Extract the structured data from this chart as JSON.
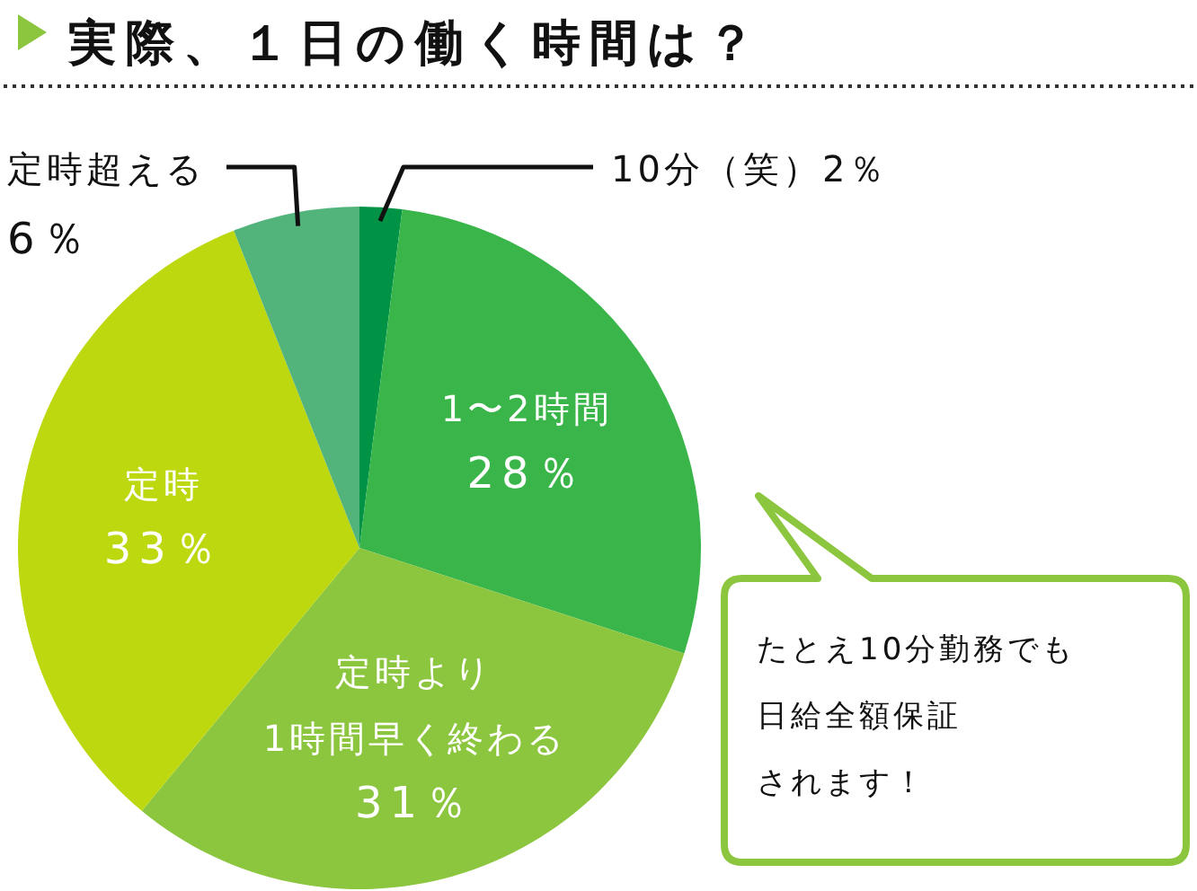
{
  "chart_data": {
    "type": "pie",
    "title": "実際、１日の働く時間は？",
    "categories": [
      "10分（笑）",
      "1〜2時間",
      "定時より\n1時間早く終わる",
      "定時",
      "定時超える"
    ],
    "values": [
      2,
      28,
      31,
      33,
      6
    ],
    "colors": [
      "#009245",
      "#39b54a",
      "#8cc63f",
      "#bdd80e",
      "#52b47b"
    ],
    "value_labels": [
      "2％",
      "28％",
      "31％",
      "33％",
      "6％"
    ],
    "annotations": [
      "たとえ10分勤務でも",
      "日給全額保証",
      "されます！"
    ]
  }
}
